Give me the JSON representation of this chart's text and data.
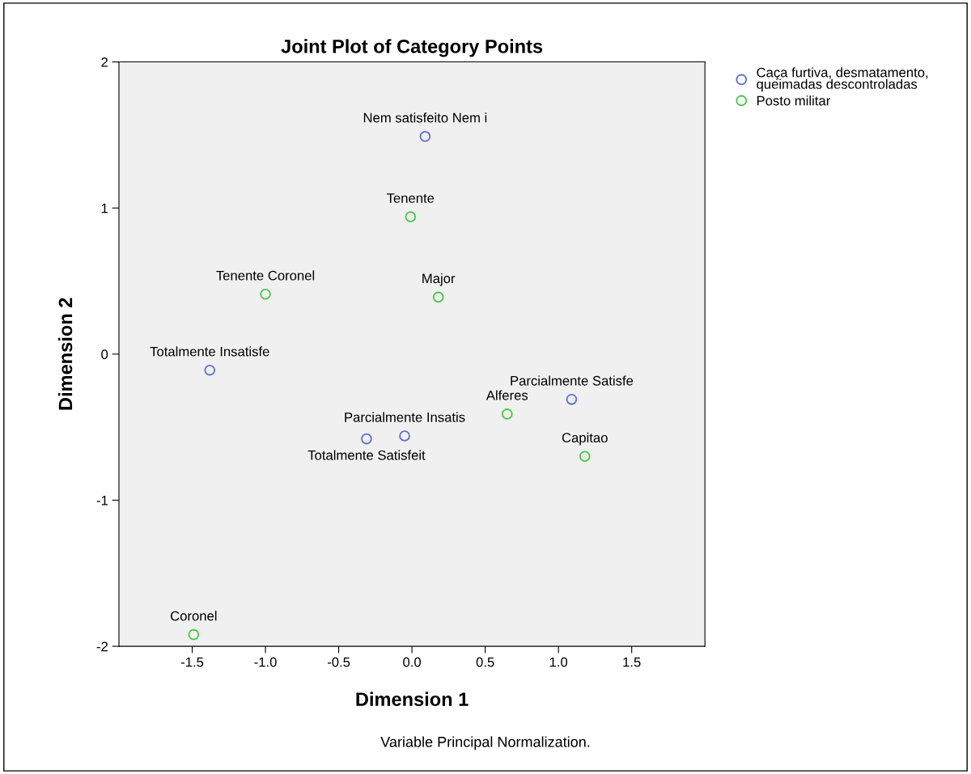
{
  "chart_data": {
    "type": "scatter",
    "title": "Joint Plot of Category Points",
    "xlabel": "Dimension 1",
    "ylabel": "Dimension 2",
    "series": [
      {
        "name": "Caça furtiva, desmatamento, queimadas descontroladas",
        "color": "#5a6ed6",
        "x": [
          0.09,
          -1.38,
          1.09,
          -0.05,
          -0.31
        ],
        "values": [
          1.49,
          -0.11,
          -0.31,
          -0.56,
          -0.58
        ]
      },
      {
        "name": "Posto militar",
        "color": "#45c845",
        "x": [
          -0.01,
          -1.0,
          0.18,
          0.65,
          1.18,
          -1.49
        ],
        "values": [
          0.94,
          0.41,
          0.39,
          -0.41,
          -0.7,
          -1.92
        ]
      }
    ],
    "annotations": [
      {
        "text": "Nem satisfeito Nem i",
        "x": 0.09,
        "y": 1.49
      },
      {
        "text": "Totalmente Insatisfe",
        "x": -1.38,
        "y": -0.11
      },
      {
        "text": "Parcialmente Satisfe",
        "x": 1.09,
        "y": -0.31
      },
      {
        "text": "Parcialmente Insatis",
        "x": -0.05,
        "y": -0.56
      },
      {
        "text": "Totalmente Satisfeit",
        "x": -0.31,
        "y": -0.58
      },
      {
        "text": "Tenente",
        "x": -0.01,
        "y": 0.94
      },
      {
        "text": "Tenente Coronel",
        "x": -1.0,
        "y": 0.41
      },
      {
        "text": "Major",
        "x": 0.18,
        "y": 0.39
      },
      {
        "text": "Alferes",
        "x": 0.65,
        "y": -0.41
      },
      {
        "text": "Capitao",
        "x": 1.18,
        "y": -0.7
      },
      {
        "text": "Coronel",
        "x": -1.49,
        "y": -1.92
      },
      "Variable Principal Normalization."
    ],
    "xlim": [
      -2.0,
      2.0
    ],
    "ylim": [
      -2,
      2
    ],
    "xticks": [
      {
        "value": -1.5,
        "label": "-1.5"
      },
      {
        "value": -1.0,
        "label": "-1.0"
      },
      {
        "value": -0.5,
        "label": "-0.5"
      },
      {
        "value": 0,
        "label": "0.0"
      },
      {
        "value": 0.5,
        "label": "0.5"
      },
      {
        "value": 1.0,
        "label": "1.0"
      },
      {
        "value": 1.5,
        "label": "1.5"
      }
    ],
    "yticks": [
      -2,
      -1,
      0,
      1,
      2
    ],
    "grid": false,
    "legend": "top right",
    "marker": "circle"
  }
}
